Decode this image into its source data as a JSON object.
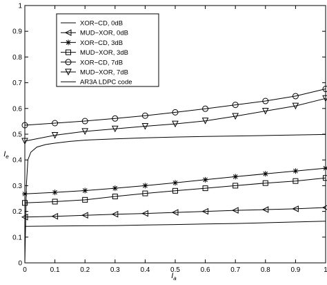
{
  "chart_data": {
    "type": "line",
    "title": "",
    "xlabel": "I_a",
    "ylabel": "I_e",
    "xlim": [
      0,
      1
    ],
    "ylim": [
      0,
      1
    ],
    "x_ticks": [
      "0",
      "0.1",
      "0.2",
      "0.3",
      "0.4",
      "0.5",
      "0.6",
      "0.7",
      "0.8",
      "0.9",
      "1"
    ],
    "y_ticks": [
      "0",
      "0.1",
      "0.2",
      "0.3",
      "0.4",
      "0.5",
      "0.6",
      "0.7",
      "0.8",
      "0.9",
      "1"
    ],
    "grid": false,
    "legend_position": "top-left",
    "series": [
      {
        "name": "XOR−CD, 0dB",
        "marker": "none",
        "x": [
          0,
          0.1,
          0.2,
          0.3,
          0.4,
          0.5,
          0.6,
          0.7,
          0.8,
          0.9,
          1.0
        ],
        "y": [
          0.142,
          0.143,
          0.144,
          0.145,
          0.147,
          0.149,
          0.151,
          0.153,
          0.156,
          0.159,
          0.162
        ]
      },
      {
        "name": "MUD−XOR, 0dB",
        "marker": "triangle-left",
        "x": [
          0,
          0.1,
          0.2,
          0.3,
          0.4,
          0.5,
          0.6,
          0.7,
          0.8,
          0.9,
          1.0
        ],
        "y": [
          0.178,
          0.181,
          0.185,
          0.189,
          0.192,
          0.196,
          0.2,
          0.204,
          0.207,
          0.21,
          0.215
        ]
      },
      {
        "name": "XOR−CD, 3dB",
        "marker": "star",
        "x": [
          0,
          0.1,
          0.2,
          0.3,
          0.4,
          0.5,
          0.6,
          0.7,
          0.8,
          0.9,
          1.0
        ],
        "y": [
          0.268,
          0.274,
          0.281,
          0.29,
          0.3,
          0.311,
          0.323,
          0.335,
          0.346,
          0.357,
          0.368
        ]
      },
      {
        "name": "MUD−XOR, 3dB",
        "marker": "square",
        "x": [
          0,
          0.1,
          0.2,
          0.3,
          0.4,
          0.5,
          0.6,
          0.7,
          0.8,
          0.9,
          1.0
        ],
        "y": [
          0.233,
          0.238,
          0.245,
          0.258,
          0.27,
          0.28,
          0.29,
          0.3,
          0.31,
          0.318,
          0.33
        ]
      },
      {
        "name": "XOR−CD, 7dB",
        "marker": "circle",
        "x": [
          0,
          0.1,
          0.2,
          0.3,
          0.4,
          0.5,
          0.6,
          0.7,
          0.8,
          0.9,
          1.0
        ],
        "y": [
          0.535,
          0.543,
          0.551,
          0.561,
          0.572,
          0.585,
          0.599,
          0.614,
          0.629,
          0.648,
          0.676
        ]
      },
      {
        "name": "MUD−XOR, 7dB",
        "marker": "triangle-down",
        "x": [
          0,
          0.1,
          0.2,
          0.3,
          0.4,
          0.5,
          0.6,
          0.7,
          0.8,
          0.9,
          1.0
        ],
        "y": [
          0.473,
          0.496,
          0.511,
          0.521,
          0.531,
          0.54,
          0.552,
          0.57,
          0.59,
          0.61,
          0.639
        ]
      },
      {
        "name": "AR3A LDPC code",
        "marker": "none",
        "x": [
          0,
          0.005,
          0.01,
          0.02,
          0.04,
          0.07,
          0.1,
          0.15,
          0.2,
          0.3,
          0.4,
          0.5,
          0.6,
          0.7,
          0.8,
          0.9,
          1.0
        ],
        "y": [
          0.0,
          0.3,
          0.4,
          0.43,
          0.45,
          0.46,
          0.465,
          0.472,
          0.477,
          0.482,
          0.486,
          0.489,
          0.491,
          0.493,
          0.495,
          0.497,
          0.499
        ]
      }
    ]
  }
}
